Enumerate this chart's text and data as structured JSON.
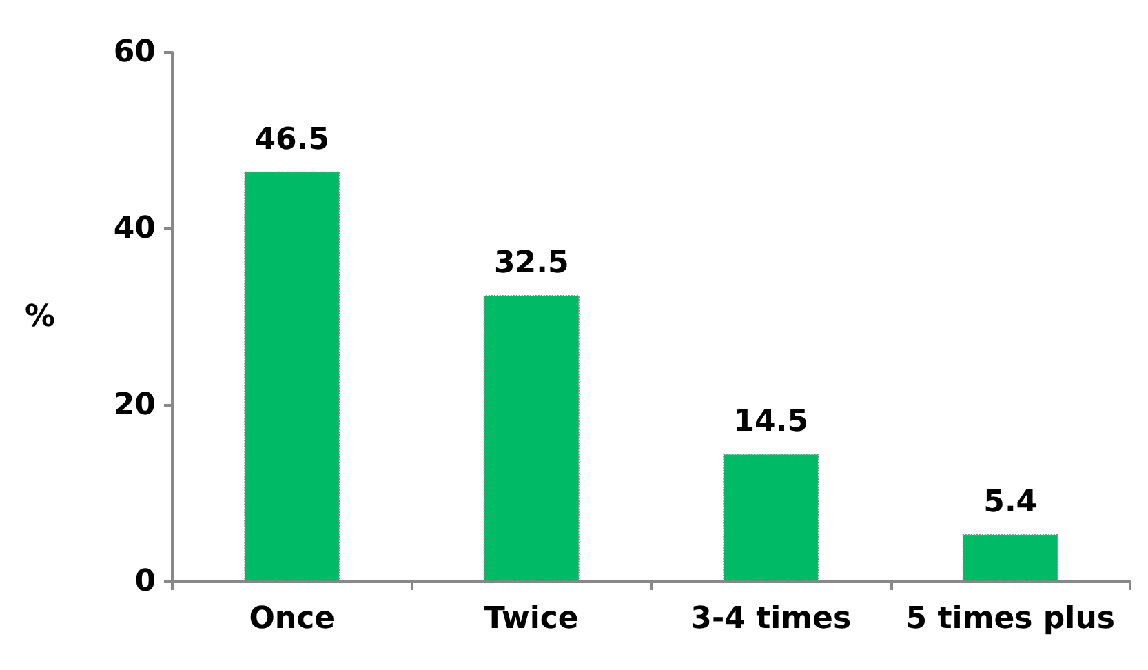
{
  "chart_data": {
    "type": "bar",
    "ylabel": "%",
    "categories": [
      "Once",
      "Twice",
      "3-4 times",
      "5 times plus"
    ],
    "values": [
      46.5,
      32.5,
      14.5,
      5.4
    ],
    "color": "#00ba66",
    "ylim": [
      0,
      60
    ],
    "yticks": [
      0,
      20,
      40,
      60
    ],
    "grid": false,
    "data_labels": true
  }
}
